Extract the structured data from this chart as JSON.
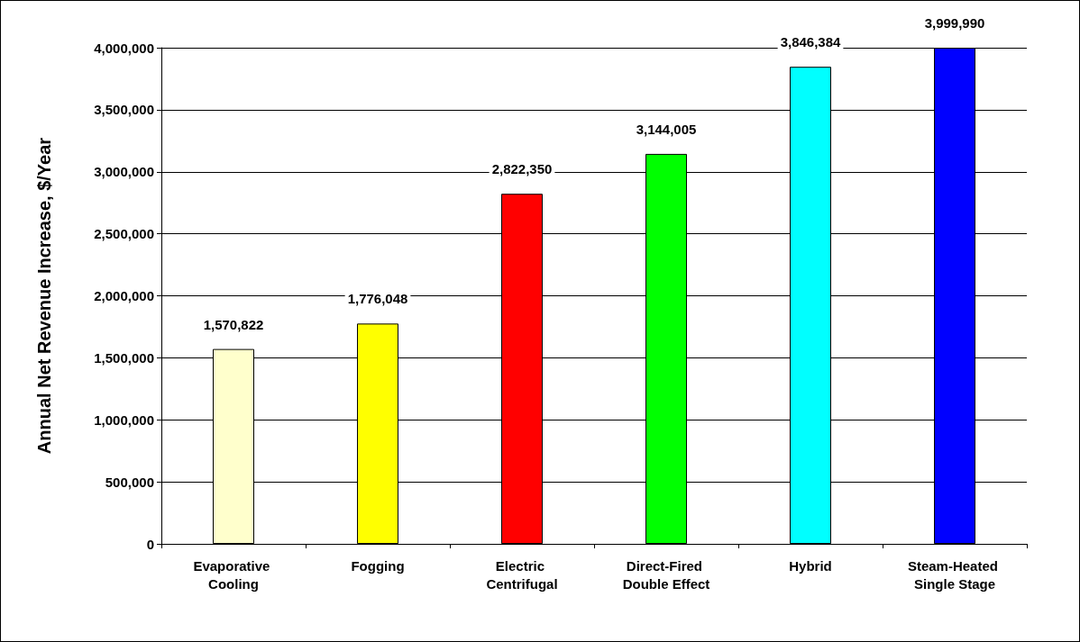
{
  "chart_data": {
    "type": "bar",
    "ylabel": "Annual Net Revenue Increase, $/Year",
    "categories": [
      "Evaporative Cooling",
      "Fogging",
      "Electric Centrifugal",
      "Direct-Fired Double Effect",
      "Hybrid",
      "Steam-Heated Single Stage"
    ],
    "values": [
      1570822,
      1776048,
      2822350,
      3144005,
      3846384,
      3999990
    ],
    "value_labels": [
      "1,570,822",
      "1,776,048",
      "2,822,350",
      "3,144,005",
      "3,846,384",
      "3,999,990"
    ],
    "colors": [
      "#ffffcc",
      "#ffff00",
      "#ff0000",
      "#00ff00",
      "#00ffff",
      "#0000ff"
    ],
    "ylim": [
      0,
      4000000
    ],
    "yticks": [
      0,
      {
        "value": 500000,
        "label": "500,000"
      },
      {
        "value": 1000000,
        "label": "1,000,000"
      },
      {
        "value": 1500000,
        "label": "1,500,000"
      },
      {
        "value": 2000000,
        "label": "2,000,000"
      },
      {
        "value": 2500000,
        "label": "2,500,000"
      },
      {
        "value": 3000000,
        "label": "3,000,000"
      },
      {
        "value": 3500000,
        "label": "3,500,000"
      },
      {
        "value": 4000000,
        "label": "4,000,000"
      }
    ],
    "grid": "y"
  }
}
